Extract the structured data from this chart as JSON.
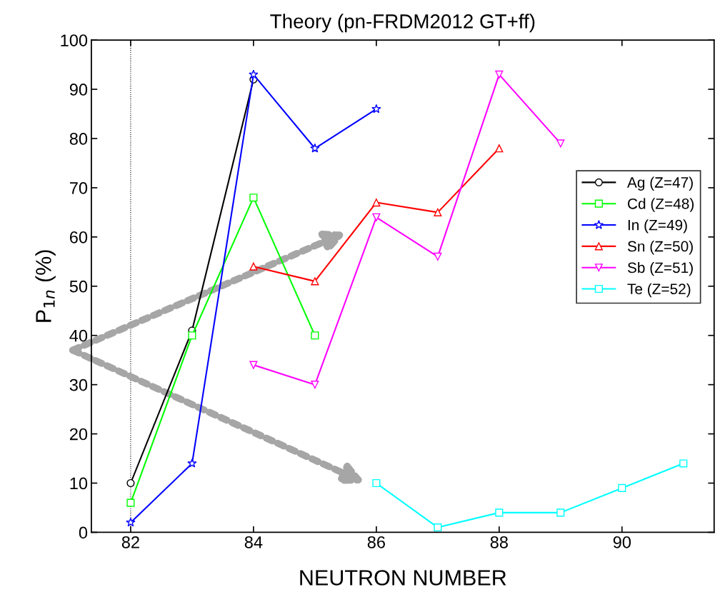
{
  "chart_data": {
    "type": "line",
    "title": "Theory (pn-FRDM2012 GT+ff)",
    "xlabel": "NEUTRON NUMBER",
    "ylabel": "P$_{1n}$ (%)",
    "xlim": [
      81.36,
      91.5
    ],
    "ylim": [
      0,
      100
    ],
    "xticks": [
      82,
      84,
      86,
      88,
      90
    ],
    "yticks": [
      0,
      10,
      20,
      30,
      40,
      50,
      60,
      70,
      80,
      90,
      100
    ],
    "legend": "right",
    "grid": false,
    "ref_lines": [
      {
        "axis": "x",
        "value": 82,
        "label": null,
        "color": "#000000",
        "line_style": "dotted"
      }
    ],
    "series": [
      {
        "name": "Ag (Z=47)",
        "color": "#000000",
        "marker": "circle",
        "x": [
          82,
          83,
          84
        ],
        "values": [
          10,
          41,
          92
        ]
      },
      {
        "name": "Cd (Z=48)",
        "color": "#00ff00",
        "marker": "square",
        "x": [
          82,
          83,
          84,
          85
        ],
        "values": [
          6,
          40,
          68,
          40
        ]
      },
      {
        "name": "In (Z=49)",
        "color": "#0000ff",
        "marker": "star",
        "x": [
          82,
          83,
          84,
          85,
          86
        ],
        "values": [
          2,
          14,
          93,
          78,
          86
        ]
      },
      {
        "name": "Sn (Z=50)",
        "color": "#ff0000",
        "marker": "triangle",
        "x": [
          84,
          85,
          86,
          87,
          88
        ],
        "values": [
          54,
          51,
          67,
          65,
          78
        ]
      },
      {
        "name": "Sb (Z=51)",
        "color": "#ff00ff",
        "marker": "triangle_down",
        "x": [
          84,
          85,
          86,
          87,
          88,
          89
        ],
        "values": [
          34,
          30,
          64,
          56,
          93,
          79
        ]
      },
      {
        "name": "Te (Z=52)",
        "color": "#00ffff",
        "marker": "square",
        "x": [
          86,
          87,
          88,
          89,
          90,
          91
        ],
        "values": [
          10,
          1,
          4,
          4,
          9,
          14
        ]
      }
    ]
  }
}
